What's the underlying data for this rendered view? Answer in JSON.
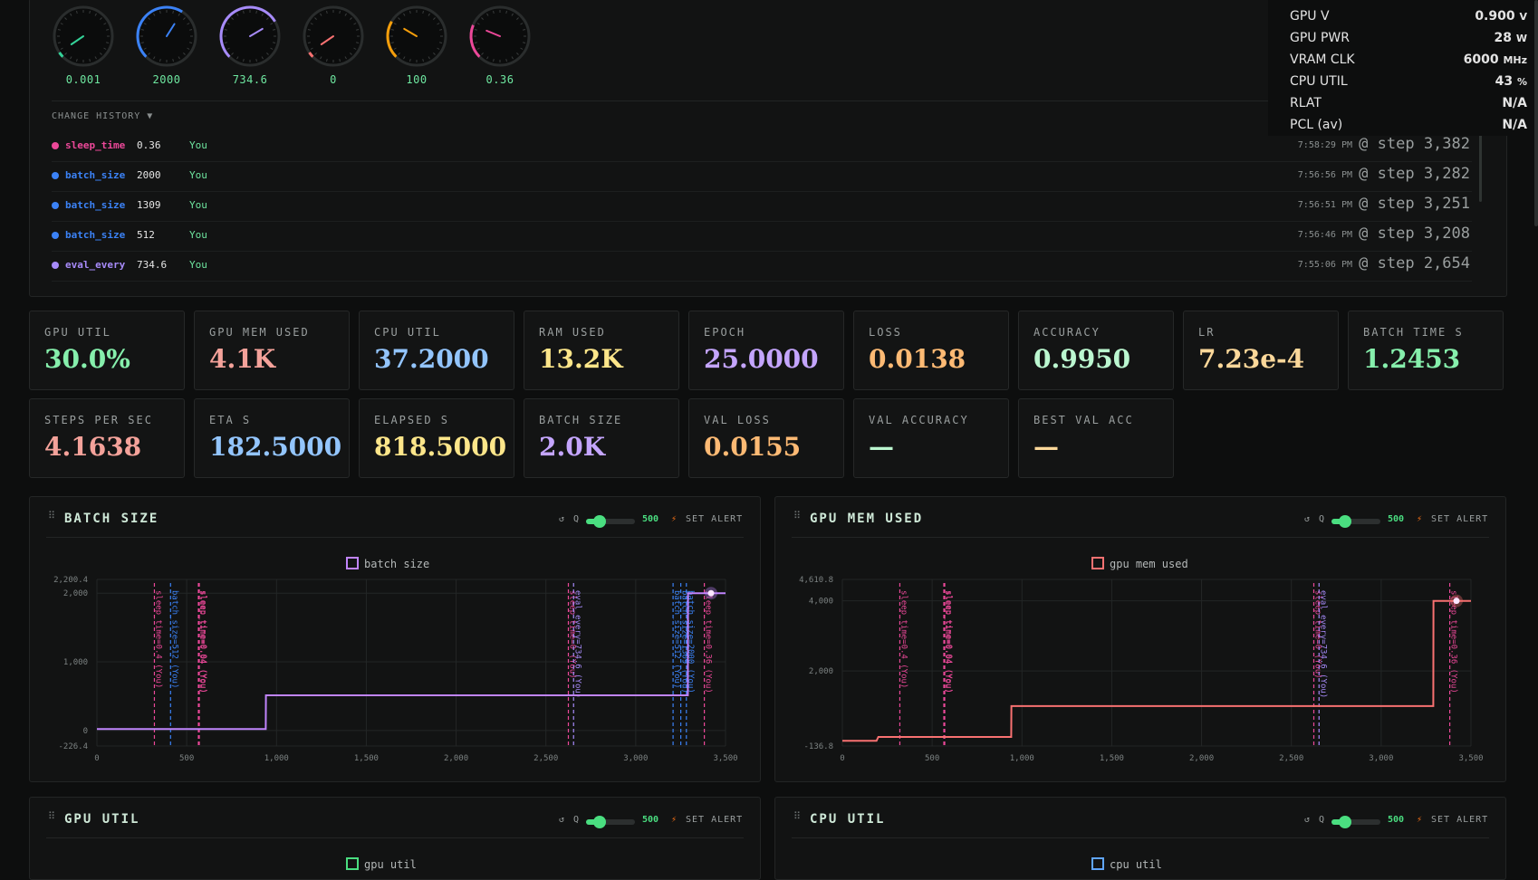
{
  "gauges": [
    {
      "value": "0.001",
      "color": "#34d399",
      "fraction": 0.02
    },
    {
      "value": "2000",
      "color": "#3b82f6",
      "fraction": 0.62
    },
    {
      "value": "734.6",
      "color": "#a78bfa",
      "fraction": 0.72
    },
    {
      "value": "0",
      "color": "#f87171",
      "fraction": 0.0
    },
    {
      "value": "100",
      "color": "#f59e0b",
      "fraction": 0.28
    },
    {
      "value": "0.36",
      "color": "#ec4899",
      "fraction": 0.25
    }
  ],
  "history": {
    "title": "CHANGE HISTORY ▼",
    "rows": [
      {
        "param": "sleep_time",
        "value": "0.36",
        "user": "You",
        "time": "7:58:29 PM",
        "step": "@ step 3,382",
        "color": "#ec4899"
      },
      {
        "param": "batch_size",
        "value": "2000",
        "user": "You",
        "time": "7:56:56 PM",
        "step": "@ step 3,282",
        "color": "#3b82f6"
      },
      {
        "param": "batch_size",
        "value": "1309",
        "user": "You",
        "time": "7:56:51 PM",
        "step": "@ step 3,251",
        "color": "#3b82f6"
      },
      {
        "param": "batch_size",
        "value": "512",
        "user": "You",
        "time": "7:56:46 PM",
        "step": "@ step 3,208",
        "color": "#3b82f6"
      },
      {
        "param": "eval_every",
        "value": "734.6",
        "user": "You",
        "time": "7:55:06 PM",
        "step": "@ step 2,654",
        "color": "#a78bfa"
      }
    ]
  },
  "overlay_stats": [
    {
      "key": "GPU V",
      "value": "0.900",
      "unit": "V"
    },
    {
      "key": "GPU PWR",
      "value": "28",
      "unit": "W"
    },
    {
      "key": "VRAM CLK",
      "value": "6000",
      "unit": "MHz"
    },
    {
      "key": "CPU UTIL",
      "value": "43",
      "unit": "%"
    },
    {
      "key": "RLAT",
      "value": "N/A",
      "unit": ""
    },
    {
      "key": "PCL (av)",
      "value": "N/A",
      "unit": ""
    }
  ],
  "metrics_row1": [
    {
      "label": "GPU UTIL",
      "value": "30.0%",
      "color": "#86efac"
    },
    {
      "label": "GPU MEM USED",
      "value": "4.1K",
      "color": "#f4a29a"
    },
    {
      "label": "CPU UTIL",
      "value": "37.2000",
      "color": "#93c5fd"
    },
    {
      "label": "RAM USED",
      "value": "13.2K",
      "color": "#fde68a"
    },
    {
      "label": "EPOCH",
      "value": "25.0000",
      "color": "#c4a5fd"
    },
    {
      "label": "LOSS",
      "value": "0.0138",
      "color": "#fdba74"
    },
    {
      "label": "ACCURACY",
      "value": "0.9950",
      "color": "#bbf7d0"
    },
    {
      "label": "LR",
      "value": "7.23e-4",
      "color": "#fcd89a"
    },
    {
      "label": "BATCH TIME S",
      "value": "1.2453",
      "color": "#86efac"
    }
  ],
  "metrics_row2": [
    {
      "label": "STEPS PER SEC",
      "value": "4.1638",
      "color": "#f4a29a"
    },
    {
      "label": "ETA S",
      "value": "182.5000",
      "color": "#93c5fd"
    },
    {
      "label": "ELAPSED S",
      "value": "818.5000",
      "color": "#fde68a"
    },
    {
      "label": "BATCH SIZE",
      "value": "2.0K",
      "color": "#c4a5fd"
    },
    {
      "label": "VAL LOSS",
      "value": "0.0155",
      "color": "#fdba74"
    },
    {
      "label": "VAL ACCURACY",
      "value": "—",
      "color": "#bbf7d0"
    },
    {
      "label": "BEST VAL ACC",
      "value": "—",
      "color": "#fcd89a"
    }
  ],
  "controls": {
    "reset": "↺",
    "q": "Q",
    "window": "500",
    "alert_icon": "⚡",
    "alert": "SET ALERT"
  },
  "panels": [
    {
      "title": "BATCH SIZE",
      "legend": "batch size",
      "color": "#c084fc"
    },
    {
      "title": "GPU MEM USED",
      "legend": "gpu mem used",
      "color": "#f87171"
    },
    {
      "title": "GPU UTIL",
      "legend": "gpu util",
      "color": "#4ade80"
    },
    {
      "title": "CPU UTIL",
      "legend": "cpu util",
      "color": "#60a5fa"
    }
  ],
  "chart_data": [
    {
      "type": "line",
      "title": "BATCH SIZE",
      "series": [
        {
          "name": "batch size",
          "x": [
            0,
            940,
            941,
            3290,
            3291,
            3500
          ],
          "y": [
            20,
            20,
            512,
            512,
            2000,
            2000
          ]
        }
      ],
      "ylim": [
        -226.4,
        2200.4
      ],
      "yticks": [
        "2,200.4",
        "2,000",
        "1,000",
        "0",
        "-226.4"
      ],
      "ytick_values": [
        2200.4,
        2000,
        1000,
        0,
        -226.4
      ],
      "xlim": [
        0,
        3500
      ],
      "xticks": [
        "0",
        "500",
        "1,000",
        "1,500",
        "2,000",
        "2,500",
        "3,000",
        "3,500"
      ],
      "xtick_values": [
        0,
        500,
        1000,
        1500,
        2000,
        2500,
        3000,
        3500
      ],
      "annotations": [
        {
          "x": 320,
          "label": "sleep_time=0.4 (You)",
          "color": "#ec4899"
        },
        {
          "x": 410,
          "label": "batch_size=512 (You)",
          "color": "#3b82f6"
        },
        {
          "x": 565,
          "label": "sleep_time=0.04 (You)",
          "color": "#ec4899"
        },
        {
          "x": 570,
          "label": "sleep_time=0.04 (You)",
          "color": "#ec4899"
        },
        {
          "x": 2625,
          "label": "sleep_time=0 (You)",
          "color": "#ec4899"
        },
        {
          "x": 2654,
          "label": "eval_every=734.6 (You)",
          "color": "#a78bfa"
        },
        {
          "x": 3208,
          "label": "batch_size=512 (You)",
          "color": "#3b82f6"
        },
        {
          "x": 3251,
          "label": "batch_size=1309 (You)",
          "color": "#3b82f6"
        },
        {
          "x": 3282,
          "label": "batch_size=2000 (You)",
          "color": "#3b82f6"
        },
        {
          "x": 3382,
          "label": "sleep_time=0.36 (You)",
          "color": "#ec4899"
        }
      ]
    },
    {
      "type": "line",
      "title": "GPU MEM USED",
      "series": [
        {
          "name": "gpu mem used",
          "x": [
            0,
            190,
            200,
            940,
            941,
            3290,
            3291,
            3500
          ],
          "y": [
            10,
            10,
            120,
            120,
            1000,
            1000,
            4000,
            4000
          ]
        }
      ],
      "ylim": [
        -136.8,
        4610.8
      ],
      "yticks": [
        "4,610.8",
        "4,000",
        "2,000",
        "-136.8"
      ],
      "ytick_values": [
        4610.8,
        4000,
        2000,
        -136.8
      ],
      "xlim": [
        0,
        3500
      ],
      "xticks": [
        "0",
        "500",
        "1,000",
        "1,500",
        "2,000",
        "2,500",
        "3,000",
        "3,500"
      ],
      "xtick_values": [
        0,
        500,
        1000,
        1500,
        2000,
        2500,
        3000,
        3500
      ],
      "annotations": [
        {
          "x": 320,
          "label": "sleep_time=0.4 (You)",
          "color": "#ec4899"
        },
        {
          "x": 565,
          "label": "sleep_time=0.04 (You)",
          "color": "#ec4899"
        },
        {
          "x": 570,
          "label": "sleep_time=0.04 (You)",
          "color": "#ec4899"
        },
        {
          "x": 2625,
          "label": "sleep_time=0 (You)",
          "color": "#ec4899"
        },
        {
          "x": 2654,
          "label": "eval_every=734.6 (You)",
          "color": "#a78bfa"
        },
        {
          "x": 3382,
          "label": "sleep_time=0.36 (You)",
          "color": "#ec4899"
        }
      ]
    }
  ]
}
